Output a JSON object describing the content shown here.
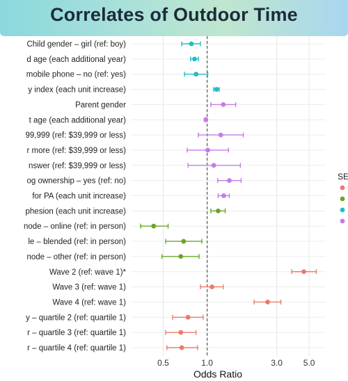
{
  "chart_data": {
    "type": "scatter",
    "title": "Correlates of Outdoor Time",
    "xlabel": "Odds Ratio",
    "ylabel": "",
    "xscale": "log",
    "xlim": [
      0.3,
      6.5
    ],
    "x_ticks": [
      0.5,
      1.0,
      3.0,
      5.0
    ],
    "x_tick_labels": [
      "0.5",
      "1.0",
      "3.0",
      "5.0"
    ],
    "reference_line": 1.0,
    "grid": true,
    "legend": {
      "title": "SE",
      "position": "right",
      "clipped": true
    },
    "colors": {
      "red": "#ee7a6b",
      "green": "#6aa526",
      "teal": "#22bcc7",
      "purple": "#c77ae6"
    },
    "rows": [
      {
        "label": "Child gender – girl (ref: boy)",
        "or": 0.78,
        "lo": 0.67,
        "hi": 0.9,
        "color": "teal"
      },
      {
        "label": "d age (each additional year)",
        "or": 0.82,
        "lo": 0.77,
        "hi": 0.87,
        "color": "teal"
      },
      {
        "label": "mobile phone – no (ref: yes)",
        "or": 0.84,
        "lo": 0.7,
        "hi": 1.01,
        "color": "teal"
      },
      {
        "label": "y index (each unit increase)",
        "or": 1.16,
        "lo": 1.11,
        "hi": 1.21,
        "color": "teal"
      },
      {
        "label": "Parent gender",
        "or": 1.29,
        "lo": 1.06,
        "hi": 1.57,
        "color": "purple"
      },
      {
        "label": "t age (each additional year)",
        "or": 0.98,
        "lo": 0.96,
        "hi": 1.0,
        "color": "purple"
      },
      {
        "label": "99,999 (ref: $39,999 or less)",
        "or": 1.24,
        "lo": 0.87,
        "hi": 1.77,
        "color": "purple"
      },
      {
        "label": "r more (ref: $39,999 or less)",
        "or": 1.01,
        "lo": 0.73,
        "hi": 1.4,
        "color": "purple"
      },
      {
        "label": "nswer (ref: $39,999 or less)",
        "or": 1.11,
        "lo": 0.74,
        "hi": 1.69,
        "color": "purple"
      },
      {
        "label": "og ownership – yes (ref: no)",
        "or": 1.42,
        "lo": 1.18,
        "hi": 1.71,
        "color": "purple"
      },
      {
        "label": "for PA (each unit increase)",
        "or": 1.3,
        "lo": 1.19,
        "hi": 1.42,
        "color": "purple"
      },
      {
        "label": "phesion (each unit increase)",
        "or": 1.19,
        "lo": 1.06,
        "hi": 1.33,
        "color": "green"
      },
      {
        "label": "node – online (ref: in person)",
        "or": 0.43,
        "lo": 0.35,
        "hi": 0.54,
        "color": "green"
      },
      {
        "label": "le – blended (ref: in person)",
        "or": 0.69,
        "lo": 0.52,
        "hi": 0.92,
        "color": "green"
      },
      {
        "label": "node – other (ref: in person)",
        "or": 0.66,
        "lo": 0.49,
        "hi": 0.88,
        "color": "green"
      },
      {
        "label": "Wave 2 (ref: wave 1)*",
        "or": 4.6,
        "lo": 3.8,
        "hi": 5.6,
        "color": "red"
      },
      {
        "label": "Wave 3 (ref: wave 1)",
        "or": 1.08,
        "lo": 0.9,
        "hi": 1.29,
        "color": "red"
      },
      {
        "label": "Wave 4 (ref: wave 1)",
        "or": 2.6,
        "lo": 2.1,
        "hi": 3.2,
        "color": "red"
      },
      {
        "label": "y – quartile 2 (ref: quartile 1)",
        "or": 0.74,
        "lo": 0.58,
        "hi": 0.94,
        "color": "red"
      },
      {
        "label": "r – quartile 3 (ref: quartile 1)",
        "or": 0.66,
        "lo": 0.52,
        "hi": 0.84,
        "color": "red"
      },
      {
        "label": "r – quartile 4 (ref: quartile 1)",
        "or": 0.67,
        "lo": 0.53,
        "hi": 0.86,
        "color": "red"
      }
    ]
  }
}
